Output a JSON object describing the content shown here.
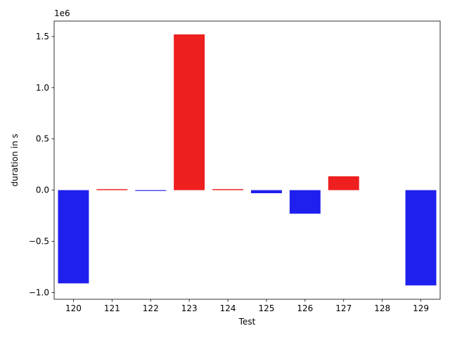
{
  "chart_data": {
    "type": "bar",
    "title": "",
    "xlabel": "Test",
    "ylabel": "duration in s",
    "offset_text": "1e6",
    "categories": [
      "120",
      "121",
      "122",
      "123",
      "124",
      "125",
      "126",
      "127",
      "128",
      "129"
    ],
    "values": [
      -910000,
      10000,
      -8000,
      1520000,
      10000,
      -30000,
      -230000,
      135000,
      0,
      -930000
    ],
    "colors": [
      "#1f1fee",
      "#ee1f1f",
      "#1f1fee",
      "#ee1f1f",
      "#ee1f1f",
      "#1f1fee",
      "#1f1fee",
      "#ee1f1f",
      "#1f1fee",
      "#1f1fee"
    ],
    "ylim": [
      -1065000,
      1650000
    ],
    "yticks": [
      -1000000,
      -500000,
      0,
      500000,
      1000000,
      1500000
    ],
    "ytick_labels": [
      "−1.0",
      "−0.5",
      "0.0",
      "0.5",
      "1.0",
      "1.5"
    ],
    "grid": false,
    "legend": "none"
  }
}
